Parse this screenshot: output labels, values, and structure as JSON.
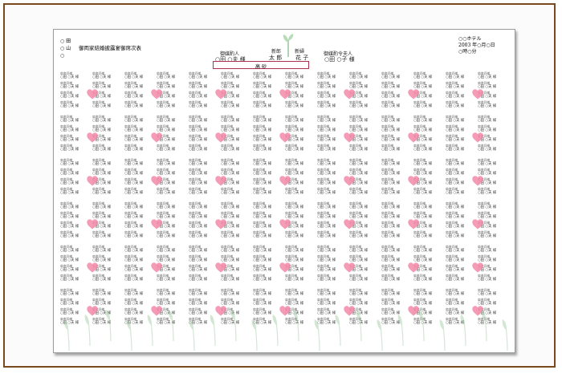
{
  "document": {
    "family_lines": [
      "○ 田",
      "○ 山",
      "○"
    ],
    "title": "御両家結婚披露宴御席次表",
    "hotel_lines": [
      "○○ホテル",
      "2003 年○月○日",
      "○時○分"
    ],
    "groom_side_matchmaker": {
      "role": "御媒酌人",
      "name": "○田 ○夫 様"
    },
    "groom": {
      "role": "新郎",
      "name": "太 郎"
    },
    "bride": {
      "role": "新婦",
      "name": "花 子"
    },
    "bride_side_matchmaker": {
      "role": "御媒酌令夫人",
      "name": "○田 ○子 様"
    },
    "honor_seat": "高 砂"
  },
  "guest_entry": {
    "title": "肩書同様",
    "name": "○田 ○夫 様"
  },
  "colors": {
    "frame": "#7a4a1e",
    "heart": "#f48aa8",
    "leaf": "#9cc9a0",
    "honor_border": "#b03050"
  },
  "icons": {
    "heart": "heart-icon",
    "sprout": "sprout-icon"
  }
}
